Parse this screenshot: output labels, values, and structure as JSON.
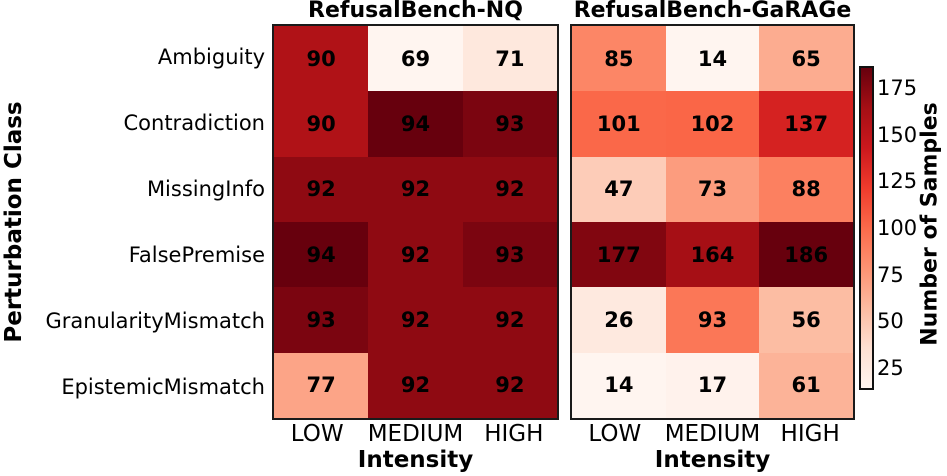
{
  "chart_data": {
    "type": "heatmap",
    "xlabel": "Intensity",
    "ylabel": "Perturbation Class",
    "categories_x": [
      "LOW",
      "MEDIUM",
      "HIGH"
    ],
    "categories_y": [
      "Ambiguity",
      "Contradiction",
      "MissingInfo",
      "FalsePremise",
      "GranularityMismatch",
      "EpistemicMismatch"
    ],
    "heatmaps": [
      {
        "title": "RefusalBench-NQ",
        "color_scale_range": [
          69,
          94
        ],
        "values": [
          [
            90,
            69,
            71
          ],
          [
            90,
            94,
            93
          ],
          [
            92,
            92,
            92
          ],
          [
            94,
            92,
            93
          ],
          [
            93,
            92,
            92
          ],
          [
            77,
            92,
            92
          ]
        ]
      },
      {
        "title": "RefusalBench-GaRAGe",
        "color_scale_range": [
          14,
          186
        ],
        "values": [
          [
            85,
            14,
            65
          ],
          [
            101,
            102,
            137
          ],
          [
            47,
            73,
            88
          ],
          [
            177,
            164,
            186
          ],
          [
            26,
            93,
            56
          ],
          [
            14,
            17,
            61
          ]
        ]
      }
    ],
    "colorbar": {
      "label": "Number of Samples",
      "ticks": [
        175,
        150,
        125,
        100,
        75,
        50,
        25
      ],
      "range": [
        14,
        186
      ]
    },
    "colormap": {
      "name": "Reds",
      "stops": [
        "#fff5f0",
        "#fee0d2",
        "#fcbba1",
        "#fc9272",
        "#fb6a4a",
        "#ef3b2c",
        "#cb181d",
        "#a50f15",
        "#67000d"
      ]
    },
    "annotation_text_color": "#000000",
    "grid": false,
    "legend_position": "right-colorbar"
  }
}
